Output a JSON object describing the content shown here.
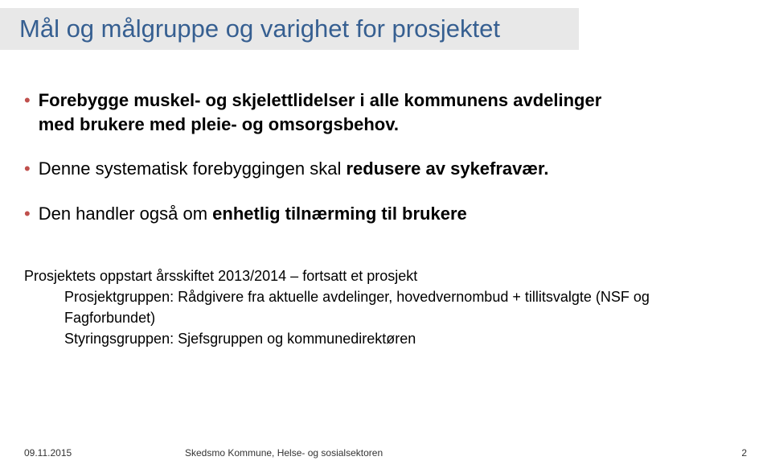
{
  "title": "Mål og målgruppe og varighet for  prosjektet",
  "bullet1_a": "Forebygge muskel- og skjelettlidelser i alle kommunens avdelinger",
  "bullet1_b": "med brukere med pleie- og omsorgsbehov.",
  "bullet2_a": "Denne systematisk forebyggingen skal ",
  "bullet2_b": "redusere av sykefravær.",
  "bullet3_a": "Den handler også om ",
  "bullet3_b": "enhetlig tilnærming til brukere",
  "sub1": "Prosjektets oppstart årsskiftet 2013/2014 – fortsatt et prosjekt",
  "sub2": "Prosjektgruppen: Rådgivere fra aktuelle avdelinger, hovedvernombud + tillitsvalgte (NSF og Fagforbundet)",
  "sub3": "Styringsgruppen: Sjefsgruppen og kommunedirektøren",
  "footer_date": "09.11.2015",
  "footer_org": "Skedsmo Kommune, Helse- og sosialsektoren",
  "footer_page": "2",
  "colors": {
    "title_bg": "#e8e8e8",
    "title_text": "#365f91",
    "bullet": "#c0504d",
    "body_text": "#000000",
    "background": "#ffffff"
  },
  "typography": {
    "title_fontsize": 31,
    "bullet_fontsize": 22,
    "sub_fontsize": 18,
    "footer_fontsize": 12
  }
}
